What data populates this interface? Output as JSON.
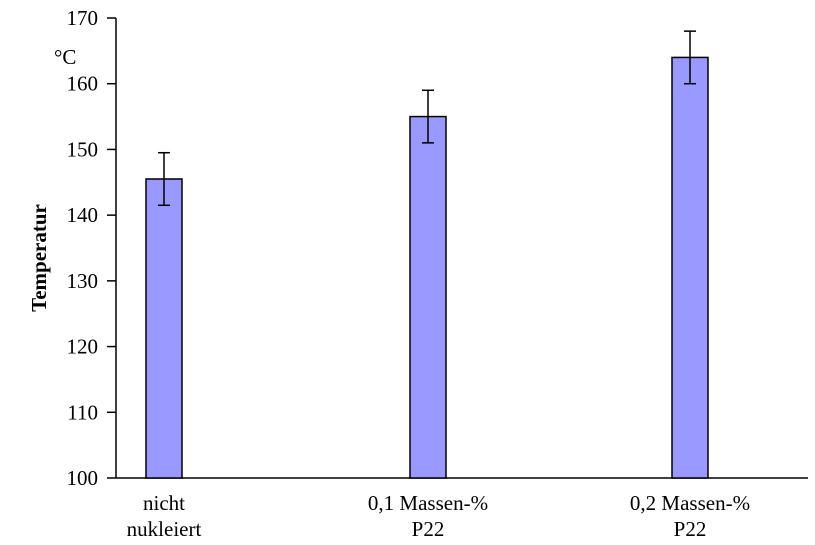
{
  "chart_data": {
    "type": "bar",
    "ylabel": "Temperatur",
    "yunit": "°C",
    "ylim": [
      100,
      170
    ],
    "yticks": [
      100,
      110,
      120,
      130,
      140,
      150,
      160,
      170
    ],
    "categories": [
      [
        "nicht",
        "nukleiert"
      ],
      [
        "0,1 Massen-%",
        "P22"
      ],
      [
        "0,2 Massen-%",
        "P22"
      ]
    ],
    "values": [
      145.5,
      155,
      164
    ],
    "error": [
      4,
      4,
      4
    ],
    "bar_color": "#9999ff",
    "grid": false
  }
}
